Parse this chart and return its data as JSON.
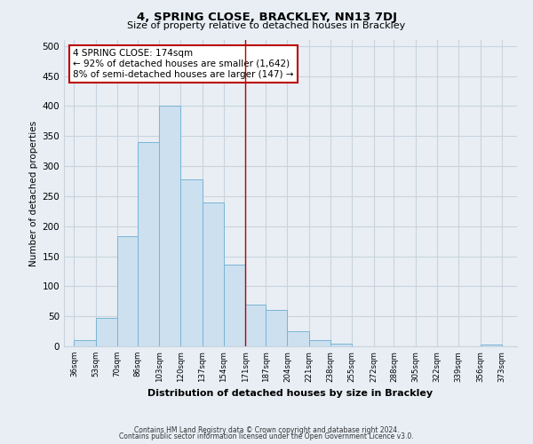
{
  "title": "4, SPRING CLOSE, BRACKLEY, NN13 7DJ",
  "subtitle": "Size of property relative to detached houses in Brackley",
  "xlabel": "Distribution of detached houses by size in Brackley",
  "ylabel": "Number of detached properties",
  "bar_left_edges": [
    36,
    53,
    70,
    86,
    103,
    120,
    137,
    154,
    171,
    187,
    204,
    221,
    238,
    255,
    272,
    288,
    305,
    322,
    339,
    356
  ],
  "bar_heights": [
    10,
    47,
    183,
    340,
    400,
    278,
    240,
    136,
    70,
    61,
    25,
    10,
    5,
    0,
    0,
    0,
    0,
    0,
    0,
    3
  ],
  "bar_widths": [
    17,
    17,
    16,
    17,
    17,
    17,
    17,
    17,
    16,
    17,
    17,
    17,
    17,
    17,
    16,
    17,
    17,
    17,
    17,
    17
  ],
  "tick_labels": [
    "36sqm",
    "53sqm",
    "70sqm",
    "86sqm",
    "103sqm",
    "120sqm",
    "137sqm",
    "154sqm",
    "171sqm",
    "187sqm",
    "204sqm",
    "221sqm",
    "238sqm",
    "255sqm",
    "272sqm",
    "288sqm",
    "305sqm",
    "322sqm",
    "339sqm",
    "356sqm",
    "373sqm"
  ],
  "tick_positions": [
    36,
    53,
    70,
    86,
    103,
    120,
    137,
    154,
    171,
    187,
    204,
    221,
    238,
    255,
    272,
    288,
    305,
    322,
    339,
    356,
    373
  ],
  "bar_color": "#cce0f0",
  "bar_edge_color": "#7ab4d4",
  "vline_x": 171,
  "vline_color": "#bb0000",
  "ylim": [
    0,
    510
  ],
  "xlim": [
    28,
    385
  ],
  "annotation_title": "4 SPRING CLOSE: 174sqm",
  "annotation_line1": "← 92% of detached houses are smaller (1,642)",
  "annotation_line2": "8% of semi-detached houses are larger (147) →",
  "annotation_box_facecolor": "#ffffff",
  "annotation_box_edgecolor": "#bb0000",
  "footer_line1": "Contains HM Land Registry data © Crown copyright and database right 2024.",
  "footer_line2": "Contains public sector information licensed under the Open Government Licence v3.0.",
  "bg_color": "#e8eef4",
  "grid_color": "#c8d4de",
  "yticks": [
    0,
    50,
    100,
    150,
    200,
    250,
    300,
    350,
    400,
    450,
    500
  ]
}
